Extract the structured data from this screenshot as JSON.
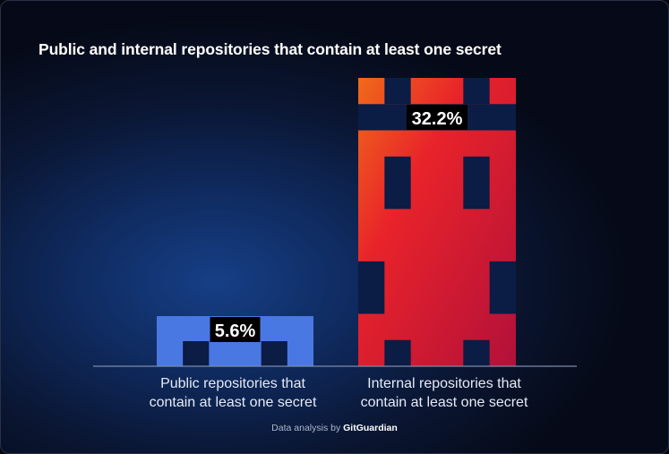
{
  "chart_data": {
    "type": "bar",
    "title": "Public and internal repositories that contain at least one secret",
    "categories": [
      "Public repositories that contain at least one secret",
      "Internal repositories that contain at least one secret"
    ],
    "values": [
      5.6,
      32.2
    ],
    "value_labels": [
      "5.6%",
      "32.2%"
    ],
    "ylim": [
      0,
      32.2
    ],
    "grid": false,
    "legend": "none",
    "colors": {
      "public": "#4a78e3",
      "internal_start": "#f06a1a",
      "internal_mid": "#e8232a",
      "internal_end": "#b3103a"
    }
  },
  "labels": {
    "public_line1": "Public repositories that",
    "public_line2": "contain at least one secret",
    "internal_line1": "Internal repositories that",
    "internal_line2": "contain at least one secret"
  },
  "footer": {
    "prefix": "Data analysis by",
    "brand": "GitGuardian"
  }
}
